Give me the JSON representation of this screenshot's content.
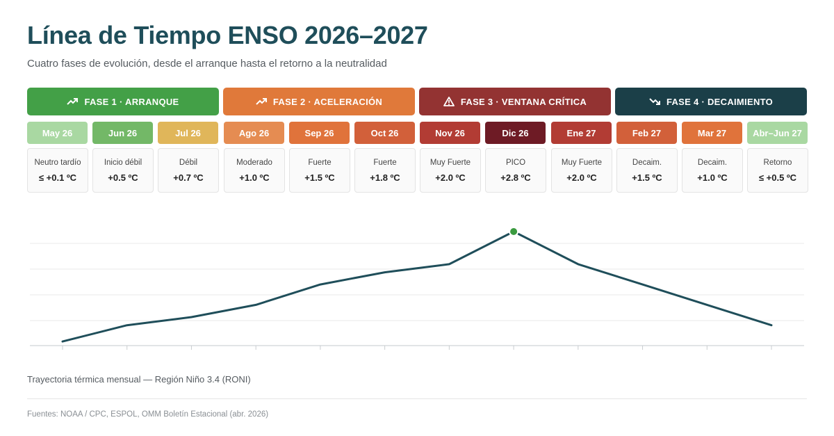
{
  "header": {
    "title": "Línea de Tiempo ENSO 2026–2027",
    "subtitle": "Cuatro fases de evolución, desde el arranque hasta el retorno a la neutralidad"
  },
  "phases": [
    {
      "label": "FASE 1 · ARRANQUE",
      "icon": "trending-up-icon",
      "color": "#43a047",
      "span": [
        0,
        2
      ]
    },
    {
      "label": "FASE 2 · ACELERACIÓN",
      "icon": "trending-up-icon",
      "color": "#e0793a",
      "span": [
        3,
        5
      ]
    },
    {
      "label": "FASE 3 · VENTANA CRÍTICA",
      "icon": "warning-icon",
      "color": "#933332",
      "span": [
        6,
        8
      ]
    },
    {
      "label": "FASE 4 · DECAIMIENTO",
      "icon": "trending-down-icon",
      "color": "#1b3f48",
      "span": [
        9,
        11
      ]
    }
  ],
  "timeline": [
    {
      "month": "May 26",
      "label": "Neutro tardío",
      "value": "≤ +0.1 ºC",
      "color": "#a9d8a2"
    },
    {
      "month": "Jun 26",
      "label": "Inicio débil",
      "value": "+0.5 ºC",
      "color": "#73b867"
    },
    {
      "month": "Jul 26",
      "label": "Débil",
      "value": "+0.7 ºC",
      "color": "#e0b65a"
    },
    {
      "month": "Ago 26",
      "label": "Moderado",
      "value": "+1.0 ºC",
      "color": "#e58c52"
    },
    {
      "month": "Sep 26",
      "label": "Fuerte",
      "value": "+1.5 ºC",
      "color": "#e0733b"
    },
    {
      "month": "Oct 26",
      "label": "Fuerte",
      "value": "+1.8 ºC",
      "color": "#d2603a"
    },
    {
      "month": "Nov 26",
      "label": "Muy Fuerte",
      "value": "+2.0 ºC",
      "color": "#b23c34"
    },
    {
      "month": "Dic 26",
      "label": "PICO",
      "value": "+2.8 ºC",
      "color": "#6e1b25"
    },
    {
      "month": "Ene 27",
      "label": "Muy Fuerte",
      "value": "+2.0 ºC",
      "color": "#b23c34"
    },
    {
      "month": "Feb 27",
      "label": "Decaim.",
      "value": "+1.5 ºC",
      "color": "#d2603a"
    },
    {
      "month": "Mar 27",
      "label": "Decaim.",
      "value": "+1.0 ºC",
      "color": "#e0733b"
    },
    {
      "month": "Abr–Jun 27",
      "label": "Retorno",
      "value": "≤ +0.5 ºC",
      "color": "#a9d8a2"
    }
  ],
  "chart_data": {
    "type": "line",
    "title": "",
    "xlabel": "",
    "ylabel": "",
    "x": [
      "May 26",
      "Jun 26",
      "Jul 26",
      "Ago 26",
      "Sep 26",
      "Oct 26",
      "Nov 26",
      "Dic 26",
      "Ene 27",
      "Feb 27",
      "Mar 27",
      "Abr–Jun 27"
    ],
    "series": [
      {
        "values": [
          0.1,
          0.5,
          0.7,
          1.0,
          1.5,
          1.8,
          2.0,
          2.8,
          2.0,
          1.5,
          1.0,
          0.5
        ],
        "color": "#1f4e5a"
      }
    ],
    "ylim": [
      0,
      2.8
    ],
    "grid": true,
    "legend": "none",
    "highlight": {
      "index": 7,
      "color": "#3a9a3f"
    }
  },
  "footer": {
    "chart_caption": "Trayectoria térmica mensual — Región Niño 3.4 (RONI)",
    "sources": "Fuentes: NOAA / CPC, ESPOL, OMM Boletín Estacional (abr. 2026)"
  }
}
